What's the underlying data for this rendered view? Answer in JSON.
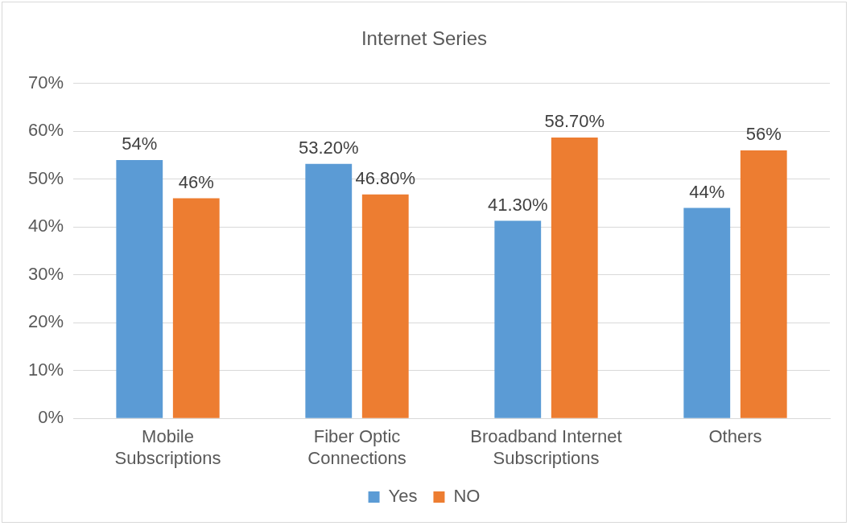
{
  "chart_data": {
    "type": "bar",
    "title": "Internet Series",
    "categories": [
      "Mobile\nSubscriptions",
      "Fiber Optic\nConnections",
      "Broadband Internet\nSubscriptions",
      "Others"
    ],
    "series": [
      {
        "name": "Yes",
        "color": "#5b9bd5",
        "values": [
          54,
          53.2,
          41.3,
          44
        ],
        "value_labels": [
          "54%",
          "53.20%",
          "41.30%",
          "44%"
        ]
      },
      {
        "name": "NO",
        "color": "#ed7d31",
        "values": [
          46,
          46.8,
          58.7,
          56
        ],
        "value_labels": [
          "46%",
          "46.80%",
          "58.70%",
          "56%"
        ]
      }
    ],
    "ylim": [
      0,
      70
    ],
    "yticks": [
      {
        "value": 0,
        "label": "0%"
      },
      {
        "value": 10,
        "label": "10%"
      },
      {
        "value": 20,
        "label": "20%"
      },
      {
        "value": 30,
        "label": "30%"
      },
      {
        "value": 40,
        "label": "40%"
      },
      {
        "value": 50,
        "label": "50%"
      },
      {
        "value": 60,
        "label": "60%"
      },
      {
        "value": 70,
        "label": "70%"
      }
    ],
    "grid": "y",
    "legend": "bottom"
  }
}
